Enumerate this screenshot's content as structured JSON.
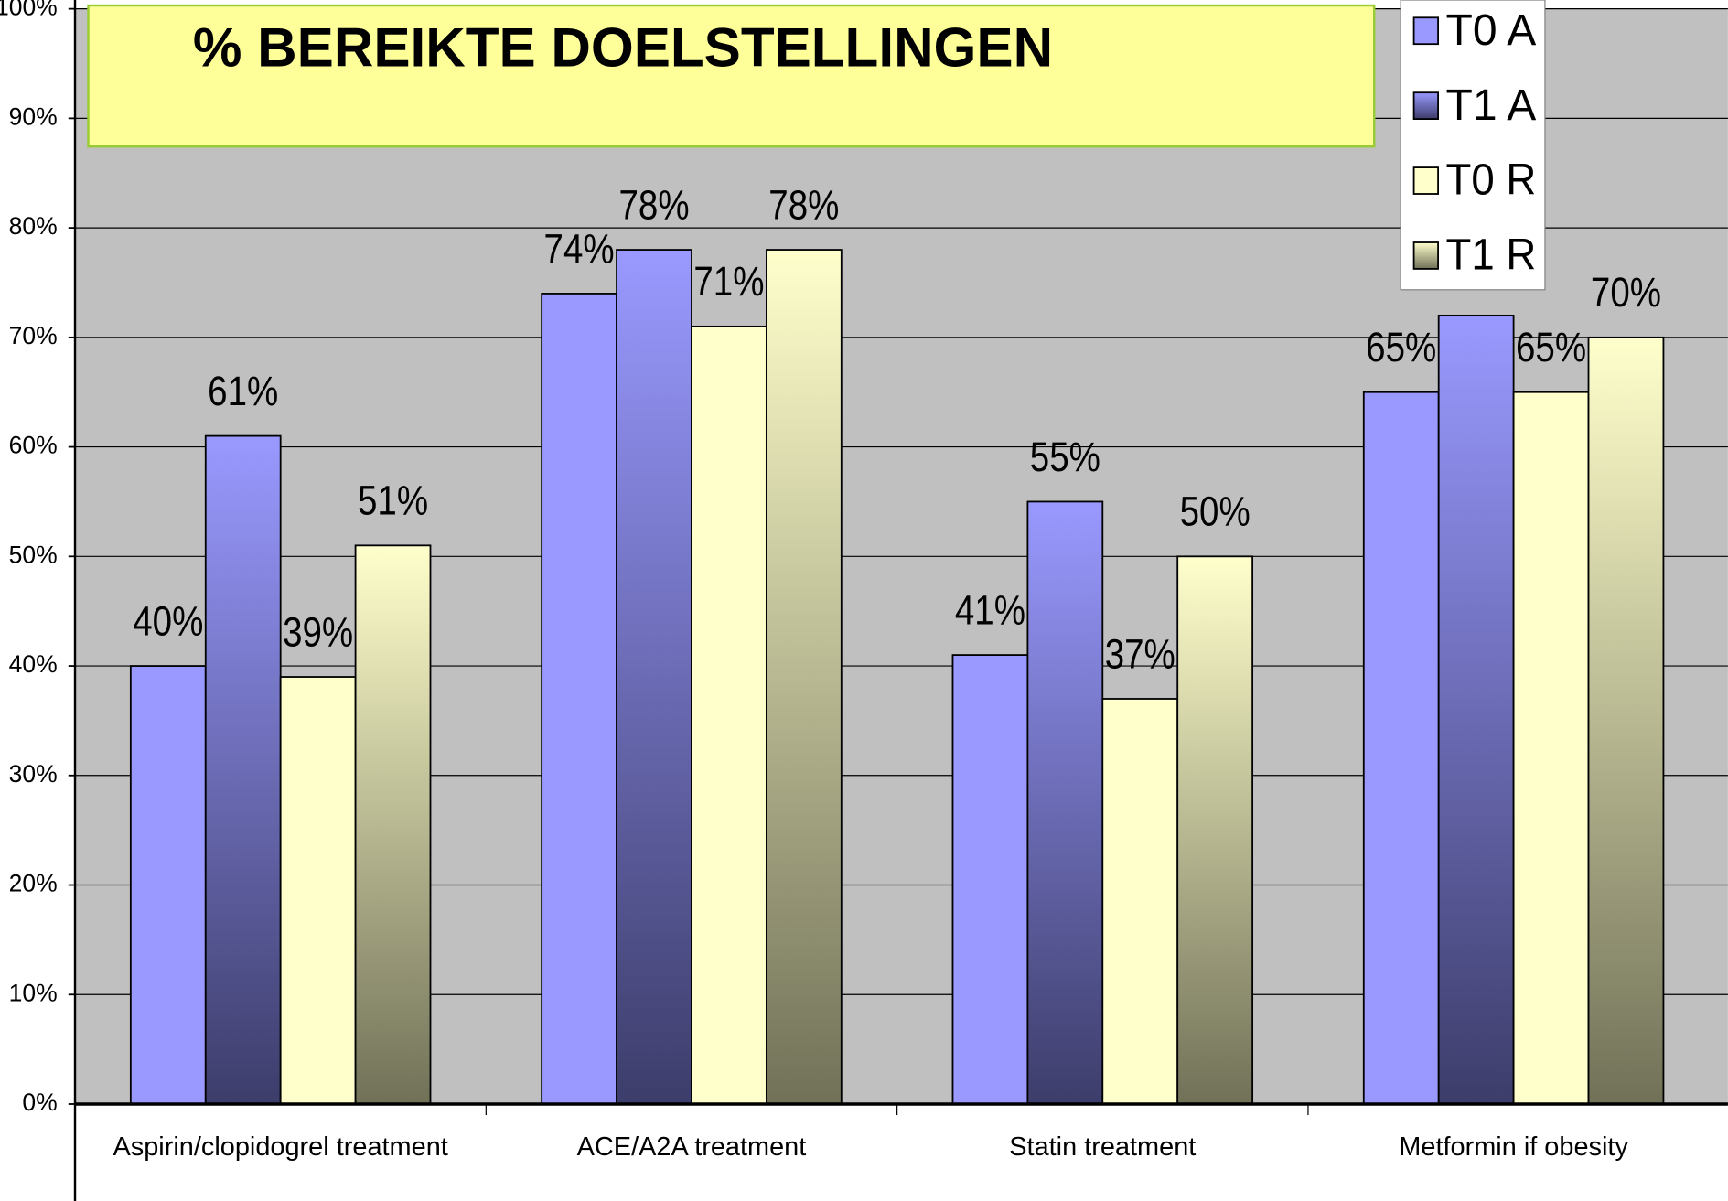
{
  "chart_data": {
    "type": "bar",
    "title": "% BEREIKTE DOELSTELLINGEN",
    "categories": [
      "Aspirin/clopidogrel treatment",
      "ACE/A2A treatment",
      "Statin treatment",
      "Metformin if obesity"
    ],
    "series": [
      {
        "name": "T0 A",
        "color": "#9999ff",
        "gradient": false,
        "values": [
          40,
          74,
          41,
          65
        ],
        "value_labels": [
          "40%",
          "74%",
          "41%",
          "65%"
        ]
      },
      {
        "name": "T1 A",
        "color": "#9999ff",
        "gradient": true,
        "values": [
          61,
          78,
          55,
          72
        ],
        "value_labels": [
          "61%",
          "78%",
          "55%",
          null
        ]
      },
      {
        "name": "T0 R",
        "color": "#ffffcc",
        "gradient": false,
        "values": [
          39,
          71,
          37,
          65
        ],
        "value_labels": [
          "39%",
          "71%",
          "37%",
          "65%"
        ]
      },
      {
        "name": "T1 R",
        "color": "#ffffcc",
        "gradient": true,
        "values": [
          51,
          78,
          50,
          70
        ],
        "value_labels": [
          "51%",
          "78%",
          "50%",
          "70%"
        ]
      }
    ],
    "ylim": [
      0,
      100
    ],
    "yticks": [
      {
        "value": 0,
        "label": "0%"
      },
      {
        "value": 10,
        "label": "10%"
      },
      {
        "value": 20,
        "label": "20%"
      },
      {
        "value": 30,
        "label": "30%"
      },
      {
        "value": 40,
        "label": "40%"
      },
      {
        "value": 50,
        "label": "50%"
      },
      {
        "value": 60,
        "label": "60%"
      },
      {
        "value": 70,
        "label": "70%"
      },
      {
        "value": 80,
        "label": "80%"
      },
      {
        "value": 90,
        "label": "90%"
      },
      {
        "value": 100,
        "label": "100%"
      }
    ],
    "grid": true,
    "legend": "top-right"
  }
}
